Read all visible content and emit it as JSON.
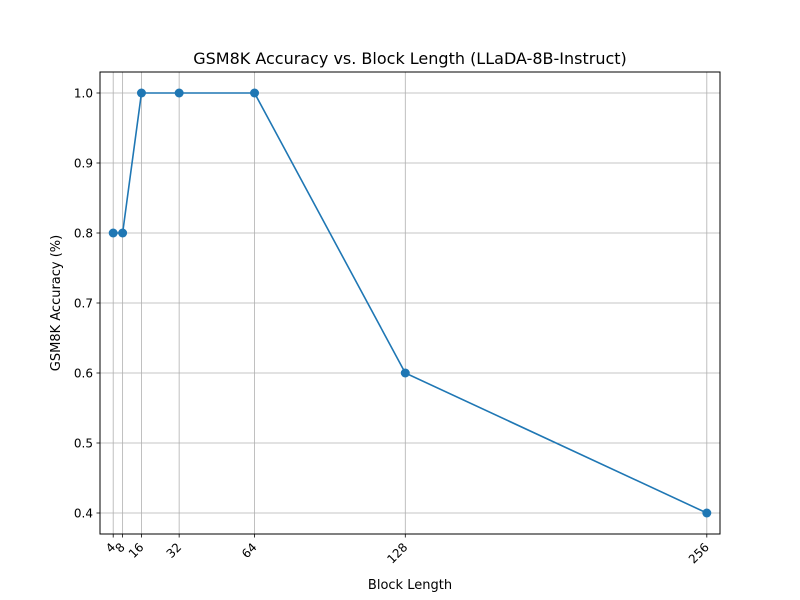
{
  "chart_data": {
    "type": "line",
    "title": "GSM8K Accuracy vs. Block Length (LLaDA-8B-Instruct)",
    "xlabel": "Block Length",
    "ylabel": "GSM8K Accuracy (%)",
    "x": [
      4,
      8,
      16,
      32,
      64,
      128,
      256
    ],
    "xticks": [
      "4",
      "8",
      "16",
      "32",
      "64",
      "128",
      "256"
    ],
    "xlim": [
      -1.6,
      261.6
    ],
    "yticks": [
      "0.4",
      "0.5",
      "0.6",
      "0.7",
      "0.8",
      "0.9",
      "1.0"
    ],
    "ylim": [
      0.37,
      1.03
    ],
    "grid": true,
    "series": [
      {
        "color": "#1f77b4",
        "marker": "circle",
        "values": [
          0.8,
          0.8,
          1.0,
          1.0,
          1.0,
          0.6,
          0.4
        ]
      }
    ]
  }
}
